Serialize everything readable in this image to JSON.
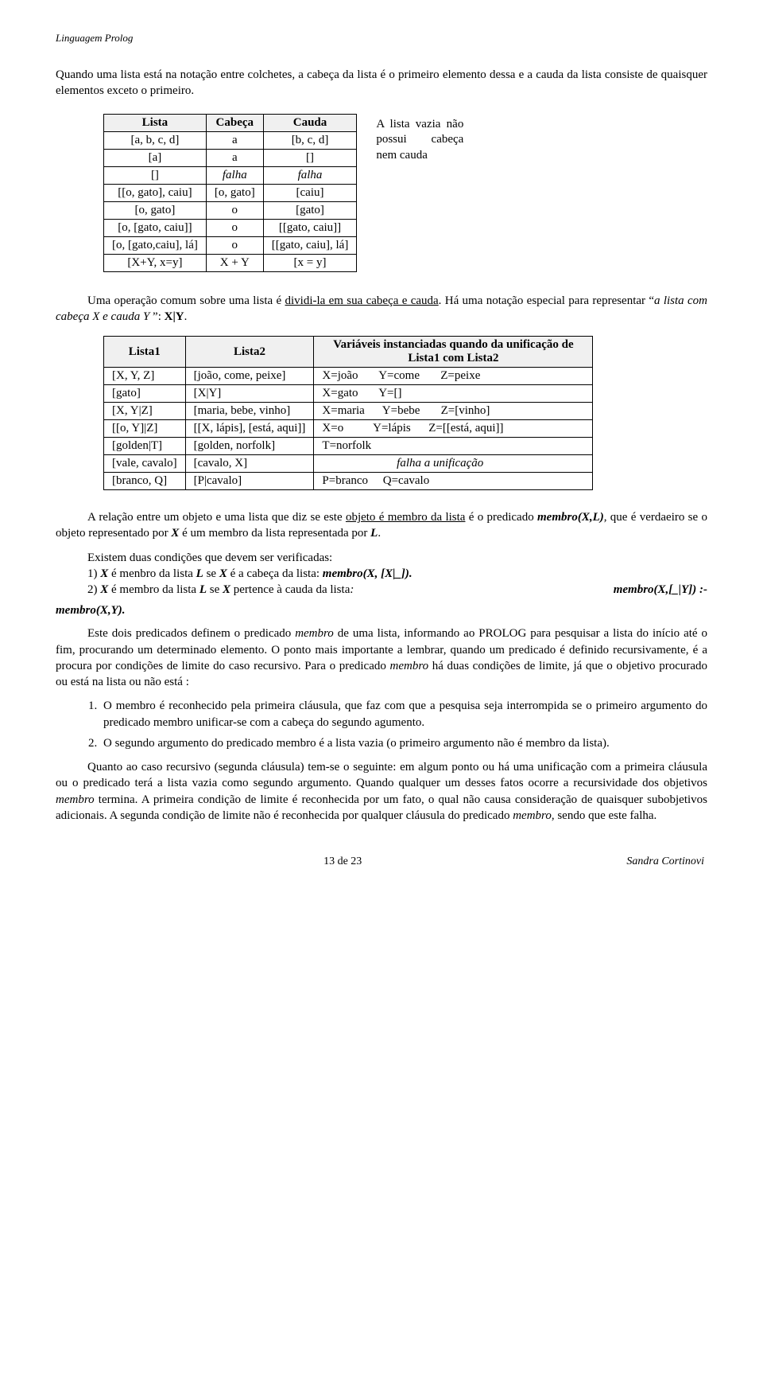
{
  "header": "Linguagem Prolog",
  "intro": "Quando uma lista está  na notação entre colchetes, a cabeça da lista é o primeiro elemento dessa e  a cauda da lista consiste de quaisquer elementos exceto o primeiro.",
  "table1": {
    "headers": [
      "Lista",
      "Cabeça",
      "Cauda"
    ],
    "rows": [
      [
        "[a, b, c, d]",
        "a",
        "[b, c, d]"
      ],
      [
        "[a]",
        "a",
        "[]"
      ],
      [
        "[]",
        "falha",
        "falha"
      ],
      [
        "[[o, gato], caiu]",
        "[o, gato]",
        "[caiu]"
      ],
      [
        "[o, gato]",
        "o",
        "[gato]"
      ],
      [
        "[o, [gato, caiu]]",
        "o",
        "[[gato, caiu]]"
      ],
      [
        "[o, [gato,caiu], lá]",
        "o",
        "[[gato, caiu], lá]"
      ],
      [
        "[X+Y, x=y]",
        "X + Y",
        "[x = y]"
      ]
    ],
    "italic_row": 2
  },
  "sidebox": "A lista vazia não possui cabeça nem cauda",
  "mid_para": {
    "pre": "Uma operação comum sobre uma lista é ",
    "u": "dividi-la em sua cabeça e cauda",
    "post1": ". Há uma notação especial para representar “",
    "i1": "a lista com cabeça X e cauda Y ",
    "post2": "”: ",
    "b1": "X|Y",
    "post3": "."
  },
  "table2": {
    "headers": [
      "Lista1",
      "Lista2",
      "Variáveis instanciadas quando da unificação de Lista1 com Lista2"
    ],
    "rows": [
      [
        "[X, Y, Z]",
        "[joão, come, peixe]",
        "X=joão       Y=come       Z=peixe"
      ],
      [
        "[gato]",
        "[X|Y]",
        "X=gato       Y=[]"
      ],
      [
        "[X, Y|Z]",
        "[maria, bebe, vinho]",
        "X=maria      Y=bebe       Z=[vinho]"
      ],
      [
        "[[o, Y]|Z]",
        "[[X, lápis], [está, aqui]]",
        "X=o          Y=lápis      Z=[[está, aqui]]"
      ],
      [
        "[golden|T]",
        "[golden, norfolk]",
        "T=norfolk"
      ],
      [
        "[vale, cavalo]",
        "[cavalo, X]",
        "                         falha a unificação"
      ],
      [
        "[branco, Q]",
        "[P|cavalo]",
        "P=branco     Q=cavalo"
      ]
    ],
    "italic_row": 5
  },
  "rel_para": {
    "p1a": "A relação entre um objeto e uma lista  que diz se este ",
    "p1u": "objeto é membro da lista",
    "p1b": "  é o predicado ",
    "p1bi": "membro(X,L)",
    "p1c": ", que é verdaeiro se o objeto representado por ",
    "p1x": "X",
    "p1d": " é um membro da lista representada por ",
    "p1l": "L",
    "p1e": "."
  },
  "conds": {
    "lead": "Existem duas condições que devem ser verificadas:",
    "c1a": "1) ",
    "c1x1": "X",
    "c1b": " é menbro da lista ",
    "c1l1": "L",
    "c1c": " se ",
    "c1x2": "X",
    "c1d": " é a cabeça da lista: ",
    "c1bi": "membro(X, [X|_]).",
    "c2a": "2) ",
    "c2x1": "X",
    "c2b": " é membro da lista ",
    "c2l1": "L",
    "c2c": " se ",
    "c2x2": "X",
    "c2d": " pertence à cauda da lista",
    "c2i": ":   ",
    "c2bi1": "membro(X,[_|Y]) :-",
    "c2bi2": "membro(X,Y)."
  },
  "p_def": {
    "a": "Este dois predicados definem o predicado ",
    "i1": "membro",
    "b": " de uma lista, informando ao PROLOG para pesquisar a lista do início até o fim, procurando um determinado elemento. O ponto mais importante a lembrar, quando um predicado é definido recursivamente, é a procura por condições de limite do caso recursivo. Para o predicado ",
    "i2": "membro",
    "c": " há duas condições de limite, já que o objetivo procurado ou está na lista ou não está :"
  },
  "list_items": [
    "O membro é reconhecido pela primeira cláusula, que faz com que a pesquisa seja interrompida se o primeiro argumento do predicado membro unificar-se com a cabeça do segundo agumento.",
    "O segundo argumento do predicado membro é a lista vazia (o primeiro argumento não é membro da lista)."
  ],
  "p_rec": {
    "a": "Quanto ao caso recursivo (segunda cláusula) tem-se o seguinte: em algum ponto ou há uma unificação com a primeira cláusula ou o predicado terá a lista vazia como segundo argumento. Quando qualquer um desses fatos ocorre a recursividade dos objetivos ",
    "i1": "membro",
    "b": " termina. A primeira condição de limite é reconhecida por um fato, o qual não causa  consideração de quaisquer subobjetivos  adicionais.  A segunda condição de limite não é reconhecida por qualquer cláusula do predicado ",
    "i2": "membro",
    "c": ", sendo que este falha."
  },
  "footer": {
    "page": "13 de 23",
    "author": "Sandra Cortinovi"
  }
}
